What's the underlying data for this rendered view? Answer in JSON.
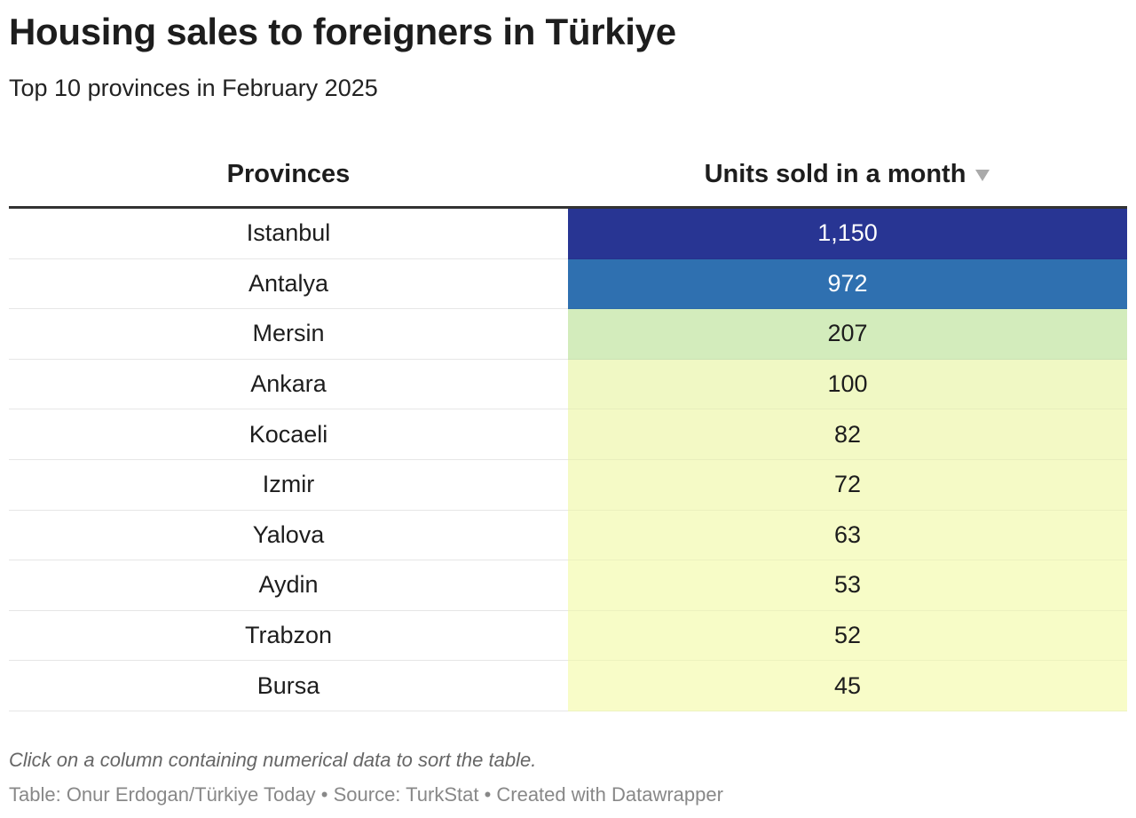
{
  "header": {
    "title": "Housing sales to foreigners in Türkiye",
    "subtitle": "Top 10 provinces in February 2025"
  },
  "table": {
    "columns": [
      "Provinces",
      "Units sold in a month"
    ],
    "rows": [
      [
        "Istanbul",
        "1,150"
      ],
      [
        "Antalya",
        "972"
      ],
      [
        "Mersin",
        "207"
      ],
      [
        "Ankara",
        "100"
      ],
      [
        "Kocaeli",
        "82"
      ],
      [
        "Izmir",
        "72"
      ],
      [
        "Yalova",
        "63"
      ],
      [
        "Aydin",
        "53"
      ],
      [
        "Trabzon",
        "52"
      ],
      [
        "Bursa",
        "45"
      ]
    ],
    "cell_colors": [
      "#283593",
      "#2f70b0",
      "#d3ecbc",
      "#f0f8c4",
      "#f3f9c5",
      "#f5fac6",
      "#f6fbc7",
      "#f7fcc7",
      "#f7fcc7",
      "#f8fcc8"
    ],
    "text_colors": [
      "#ffffff",
      "#ffffff",
      "#1d1d1d",
      "#1d1d1d",
      "#1d1d1d",
      "#1d1d1d",
      "#1d1d1d",
      "#1d1d1d",
      "#1d1d1d",
      "#1d1d1d"
    ]
  },
  "footer": {
    "notes": "Click on a column containing numerical data to sort the table.",
    "source": "Table: Onur Erdogan/Türkiye Today • Source: TurkStat • Created with Datawrapper"
  }
}
